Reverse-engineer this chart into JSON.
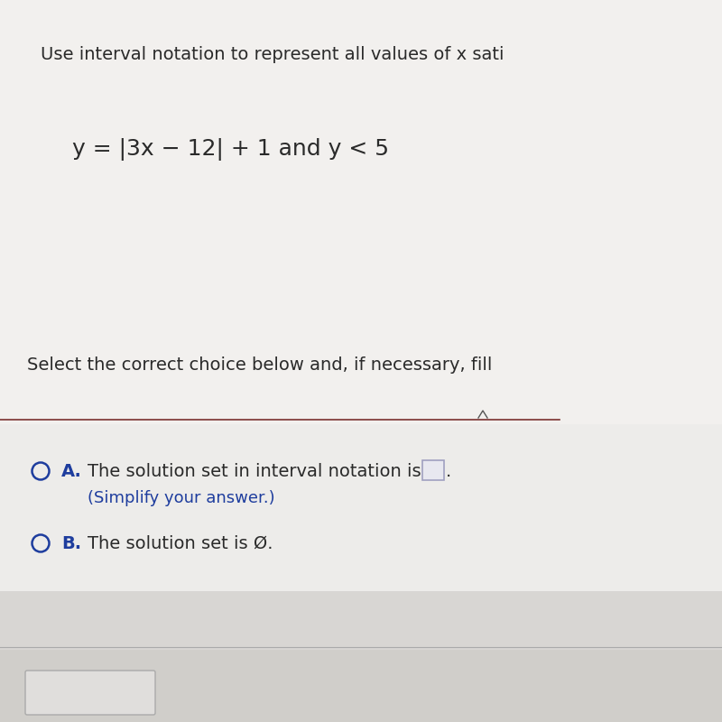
{
  "title_text": "Use interval notation to represent all values of x sati",
  "equation_text": "y = |3x − 12| + 1 and y < 5",
  "instruction_text": "Select the correct choice below and, if necessary, fill",
  "option_a_label": "A.",
  "option_a_text": "The solution set in interval notation is",
  "option_a_subtext": "(Simplify your answer.)",
  "option_b_label": "B.",
  "option_b_text": "The solution set is Ø.",
  "bg_top": "#f0eeec",
  "bg_mid": "#f0eeec",
  "bg_bottom": "#dddbd8",
  "bg_very_bottom": "#e8e6e3",
  "divider_color": "#7a3030",
  "text_color": "#2a2a2a",
  "label_color": "#1e3d9e",
  "circle_color": "#1e3d9e",
  "box_edge_color": "#a0a0c0",
  "box_face_color": "#e8e8f0",
  "font_size_title": 14,
  "font_size_equation": 18,
  "font_size_instruction": 14,
  "font_size_options": 14,
  "fig_width": 8.0,
  "fig_height": 8.0,
  "dpi": 100
}
